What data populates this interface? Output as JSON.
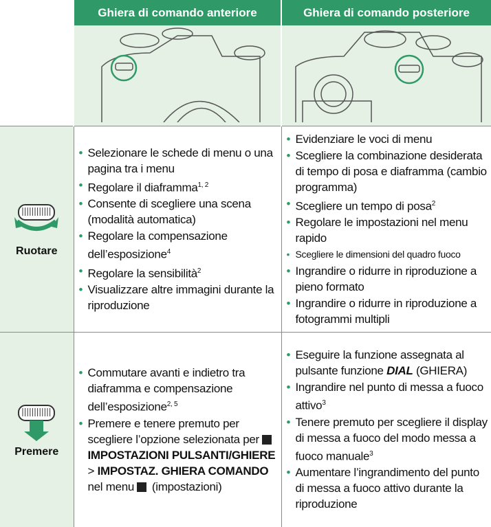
{
  "table": {
    "headers": [
      "Ghiera di comando anteriore",
      "Ghiera di comando posteriore"
    ],
    "rows": [
      {
        "label": "Ruotare",
        "front": [
          "Selezionare le schede di menu o una pagina tra i menu",
          {
            "text": "Regolare il diaframma",
            "sup": "1, 2"
          },
          "Consente di scegliere una scena (modalità automatica)",
          {
            "text": "Regolare la compensazione dell’esposizione",
            "sup": "4"
          },
          {
            "text": "Regolare la sensibilità",
            "sup": "2"
          },
          "Visualizzare altre immagini durante la riproduzione"
        ],
        "rear": [
          "Evidenziare le voci di menu",
          "Scegliere la combinazione desiderata di tempo di posa e diaframma (cambio programma)",
          {
            "text": "Scegliere un tempo di posa",
            "sup": "2"
          },
          "Regolare le impostazioni nel menu rapido",
          "Scegliere le dimensioni del quadro fuoco",
          "Ingrandire o ridurre in riproduzione a pieno formato",
          "Ingrandire o ridurre in riproduzione a fotogrammi multipli"
        ]
      },
      {
        "label": "Premere",
        "front": [
          {
            "text": "Commutare avanti e indietro tra diaframma e compensazione dell’esposizione",
            "sup": "2, 5"
          },
          {
            "parts": [
              {
                "text": "Premere e tenere premuto per scegliere l’opzione selezionata per "
              },
              {
                "style": "icon"
              },
              {
                "text": "IMPOSTAZIONI PULSANTI/GHIERE",
                "style": "b"
              },
              {
                "text": " > "
              },
              {
                "text": "IMPOSTAZ. GHIERA COMANDO",
                "style": "b"
              },
              {
                "text": " nel menu "
              },
              {
                "style": "icon"
              },
              {
                "text": " (impostazioni)"
              }
            ]
          }
        ],
        "rear": [
          {
            "parts": [
              {
                "text": "Eseguire la funzione assegnata al pulsante funzione "
              },
              {
                "text": "DIAL",
                "style": "bi"
              },
              {
                "text": " (GHIERA)"
              }
            ]
          },
          {
            "text": "Ingrandire nel punto di messa a fuoco attivo",
            "sup": "3"
          },
          {
            "text": "Tenere premuto per scegliere il display di messa a fuoco del modo messa a fuoco manuale",
            "sup": "3"
          },
          "Aumentare l’ingrandimento del punto di messa a fuoco attivo durante la riproduzione"
        ]
      }
    ]
  }
}
